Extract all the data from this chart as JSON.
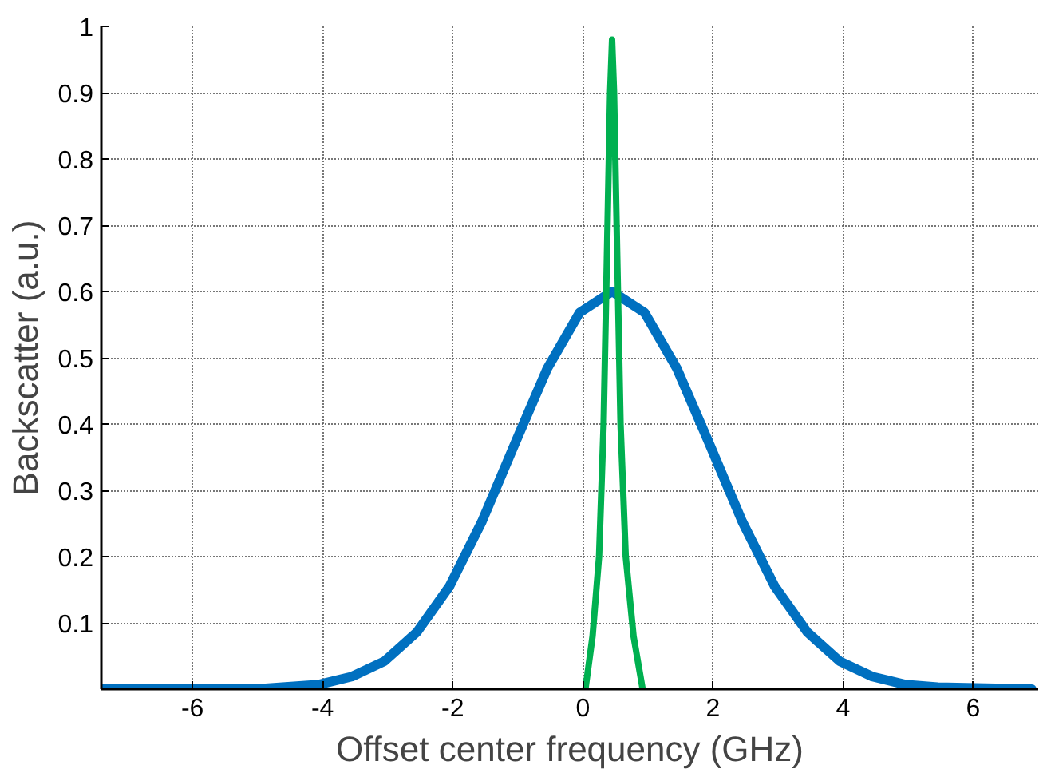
{
  "chart_data": {
    "type": "line",
    "xlabel": "Offset center frequency (GHz)",
    "ylabel": "Backscatter (a.u.)",
    "xlim": [
      -7.4,
      7
    ],
    "ylim": [
      0,
      1
    ],
    "xticks": [
      -6,
      -4,
      -2,
      0,
      2,
      4,
      6
    ],
    "yticks": [
      0.1,
      0.2,
      0.3,
      0.4,
      0.5,
      0.6,
      0.7,
      0.8,
      0.9,
      1
    ],
    "grid": true,
    "line_style": "solid",
    "marker": "none",
    "series": [
      {
        "color": "#0070c0",
        "x": [
          -7.4,
          -5.05,
          -4.05,
          -3.55,
          -3.05,
          -2.55,
          -2.05,
          -1.55,
          -1.05,
          -0.55,
          -0.05,
          0.45,
          0.95,
          1.45,
          1.95,
          2.45,
          2.95,
          3.45,
          3.95,
          4.45,
          4.95,
          5.45,
          6.9
        ],
        "values": [
          0,
          0,
          0.007,
          0.019,
          0.042,
          0.086,
          0.155,
          0.253,
          0.369,
          0.483,
          0.568,
          0.6,
          0.568,
          0.483,
          0.369,
          0.253,
          0.155,
          0.086,
          0.042,
          0.019,
          0.007,
          0.003,
          0
        ]
      },
      {
        "color": "#00b050",
        "x": [
          0.04,
          0.15,
          0.25,
          0.32,
          0.37,
          0.42,
          0.45,
          0.48,
          0.53,
          0.58,
          0.66,
          0.78,
          0.92
        ],
        "values": [
          0,
          0.08,
          0.2,
          0.4,
          0.65,
          0.9,
          0.98,
          0.9,
          0.65,
          0.4,
          0.2,
          0.08,
          0
        ]
      }
    ]
  }
}
